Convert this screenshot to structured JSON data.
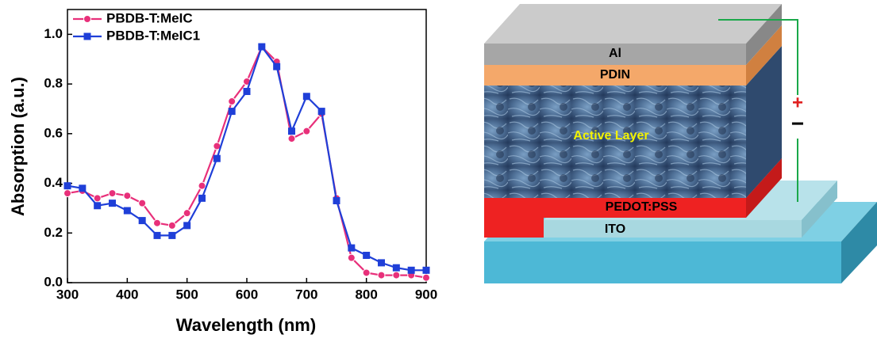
{
  "chart_data": {
    "type": "line",
    "x_label": "Wavelength (nm)",
    "y_label": "Absorption (a.u.)",
    "x": [
      300,
      325,
      350,
      375,
      400,
      425,
      450,
      475,
      500,
      525,
      550,
      575,
      600,
      625,
      650,
      675,
      700,
      725,
      750,
      775,
      800,
      825,
      850,
      875,
      900
    ],
    "series": [
      {
        "name": "PBDB-T:MeIC",
        "color": "#e8307a",
        "marker": "circle",
        "values": [
          0.36,
          0.37,
          0.34,
          0.36,
          0.35,
          0.32,
          0.24,
          0.23,
          0.28,
          0.39,
          0.55,
          0.73,
          0.81,
          0.95,
          0.89,
          0.58,
          0.61,
          0.68,
          0.34,
          0.1,
          0.04,
          0.03,
          0.03,
          0.03,
          0.02
        ]
      },
      {
        "name": "PBDB-T:MeIC1",
        "color": "#1f3fd8",
        "marker": "square",
        "values": [
          0.39,
          0.38,
          0.31,
          0.32,
          0.29,
          0.25,
          0.19,
          0.19,
          0.23,
          0.34,
          0.5,
          0.69,
          0.77,
          0.95,
          0.87,
          0.61,
          0.75,
          0.69,
          0.33,
          0.14,
          0.11,
          0.08,
          0.06,
          0.05,
          0.05
        ]
      }
    ],
    "xlim": [
      300,
      900
    ],
    "xticks": [
      300,
      400,
      500,
      600,
      700,
      800,
      900
    ],
    "ylim": [
      0,
      1.1
    ],
    "yticks": [
      {
        "value": 0,
        "label": "0.0"
      },
      0.2,
      0.4,
      0.6,
      0.8,
      {
        "value": 1,
        "label": "1.0"
      }
    ],
    "legend": "upper left"
  },
  "diagram": {
    "layers": [
      "Al",
      "PDIN",
      "Active Layer",
      "PEDOT:PSS",
      "ITO"
    ],
    "polarity": [
      "+",
      "−"
    ]
  }
}
